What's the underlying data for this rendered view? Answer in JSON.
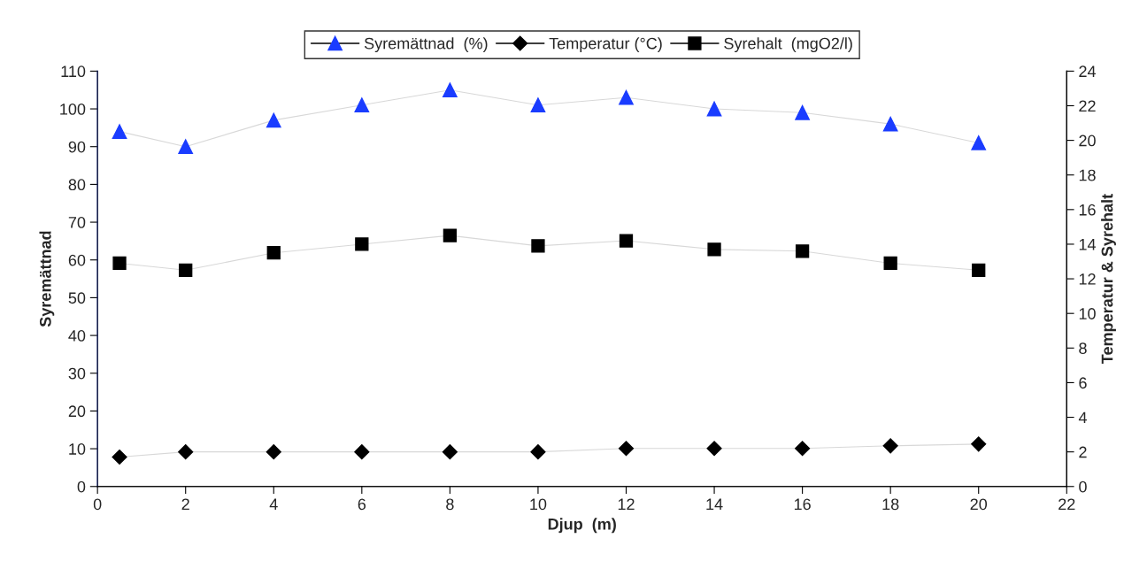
{
  "chart_data": {
    "type": "line",
    "xlabel": "Djup  (m)",
    "ylabel": "Syremättnad",
    "y2label": "Temperatur & Syrehalt",
    "x": [
      0.5,
      2,
      4,
      6,
      8,
      10,
      12,
      14,
      16,
      18,
      20
    ],
    "series": [
      {
        "name": "Syremättnad  (%)",
        "color": "#1a3cff",
        "marker": "triangle",
        "values": [
          94,
          90,
          97,
          101,
          105,
          101,
          103,
          100,
          99,
          96,
          91
        ]
      },
      {
        "name": "Temperatur (°C)",
        "color": "#000000",
        "marker": "diamond",
        "axis": "y2",
        "values": [
          1.7,
          2.0,
          2.0,
          2.0,
          2.0,
          2.0,
          2.2,
          2.2,
          2.2,
          2.35,
          2.45
        ]
      },
      {
        "name": "Syrehalt  (mgO2/l)",
        "color": "#000000",
        "marker": "square",
        "axis": "y2",
        "values": [
          12.9,
          12.5,
          13.5,
          14.0,
          14.5,
          13.9,
          14.2,
          13.7,
          13.6,
          12.9,
          12.5
        ]
      }
    ],
    "xlim": [
      0,
      22
    ],
    "xticks": [
      0,
      2,
      4,
      6,
      8,
      10,
      12,
      14,
      16,
      18,
      20,
      22
    ],
    "ylim": [
      0,
      110
    ],
    "yticks": [
      0,
      10,
      20,
      30,
      40,
      50,
      60,
      70,
      80,
      90,
      100,
      110
    ],
    "y2lim": [
      0,
      24
    ],
    "y2ticks": [
      0,
      2,
      4,
      6,
      8,
      10,
      12,
      14,
      16,
      18,
      20,
      22,
      24
    ],
    "grid": false,
    "legend": "top"
  }
}
